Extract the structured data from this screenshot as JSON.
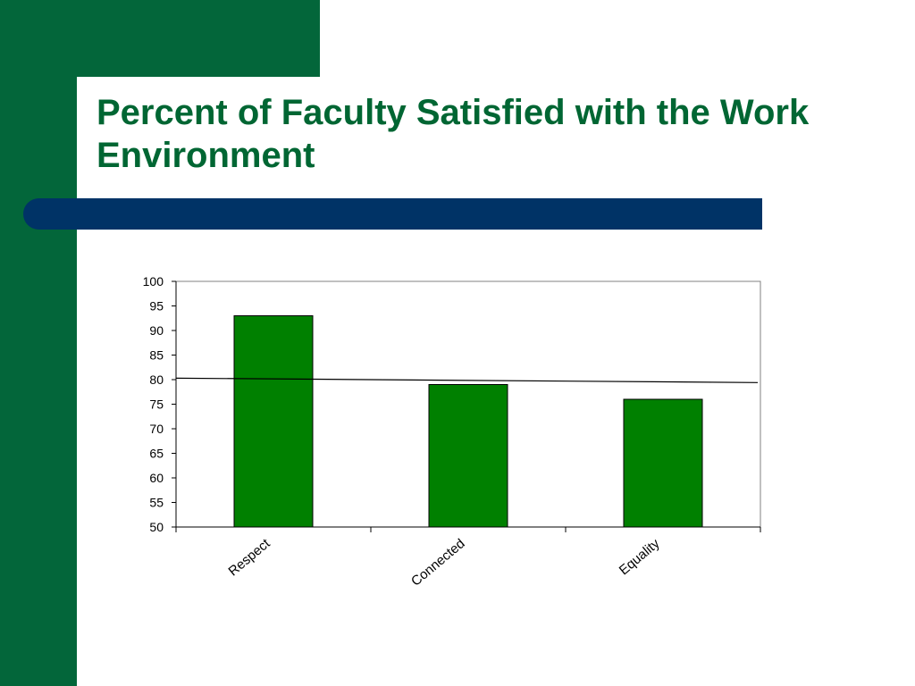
{
  "slide": {
    "title": "Percent of Faculty Satisfied with the Work Environment",
    "colors": {
      "sidebar_green": "#03663a",
      "title_green": "#006633",
      "rule_bar_navy": "#003366",
      "bar_green": "#008000"
    }
  },
  "chart_data": {
    "type": "bar",
    "title": "",
    "xlabel": "",
    "ylabel": "",
    "categories": [
      "Respect",
      "Connected",
      "Equality"
    ],
    "values": [
      93,
      79,
      76
    ],
    "ylim": [
      50,
      100
    ],
    "yticks": [
      50,
      55,
      60,
      65,
      70,
      75,
      80,
      85,
      90,
      95,
      100
    ],
    "trendline": {
      "type": "linear",
      "start": 80.3,
      "end": 79.4
    },
    "grid": false,
    "legend": "none"
  }
}
